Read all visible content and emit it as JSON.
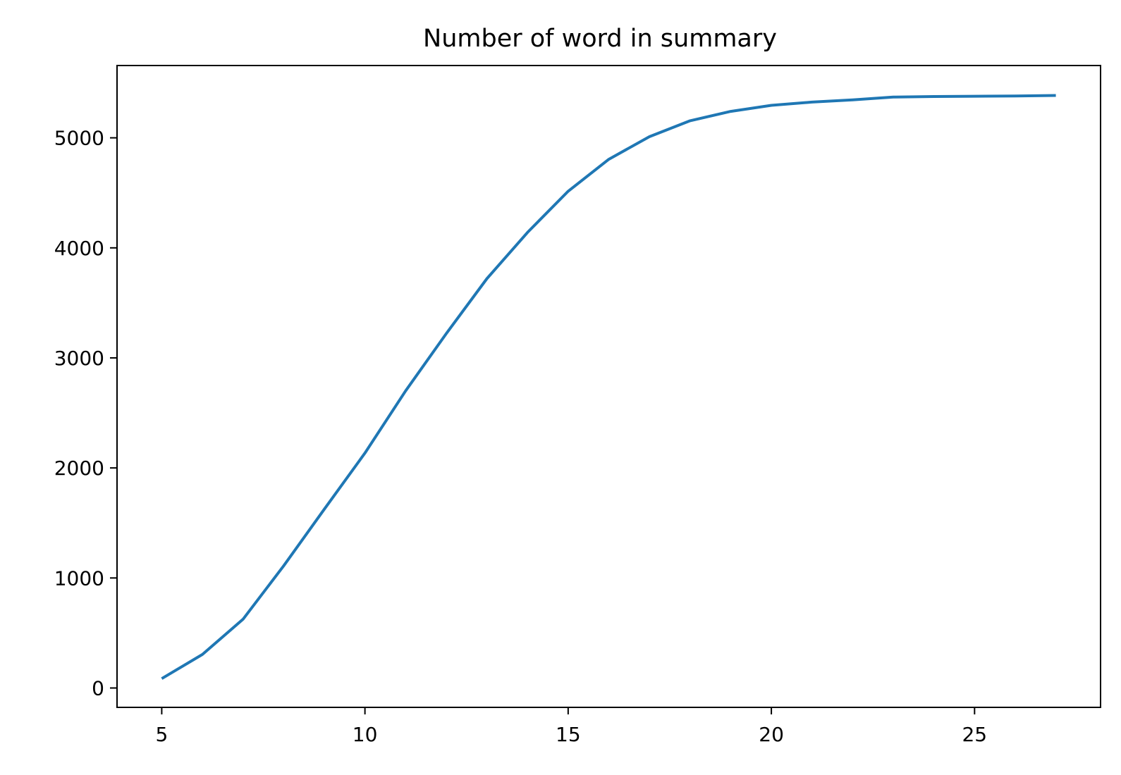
{
  "chart_data": {
    "type": "line",
    "title": "Number of word in summary",
    "xlabel": "",
    "ylabel": "",
    "x": [
      5,
      6,
      7,
      8,
      9,
      10,
      11,
      12,
      13,
      14,
      15,
      16,
      17,
      18,
      19,
      20,
      21,
      22,
      23,
      24,
      25,
      26,
      27
    ],
    "series": [
      {
        "values": [
          85,
          305,
          625,
          1110,
          1625,
          2135,
          2700,
          3220,
          3720,
          4140,
          4515,
          4805,
          5010,
          5155,
          5240,
          5295,
          5325,
          5345,
          5370,
          5375,
          5378,
          5380,
          5385
        ],
        "color": "#1f77b4"
      }
    ],
    "xlim": [
      3.9,
      28.1
    ],
    "ylim": [
      -176,
      5657
    ],
    "xticks": [
      5,
      10,
      15,
      20,
      25
    ],
    "xtick_labels": [
      "5",
      "10",
      "15",
      "20",
      "25"
    ],
    "yticks": [
      0,
      1000,
      2000,
      3000,
      4000,
      5000
    ],
    "ytick_labels": [
      "0",
      "1000",
      "2000",
      "3000",
      "4000",
      "5000"
    ],
    "grid": false,
    "legend": "none"
  }
}
